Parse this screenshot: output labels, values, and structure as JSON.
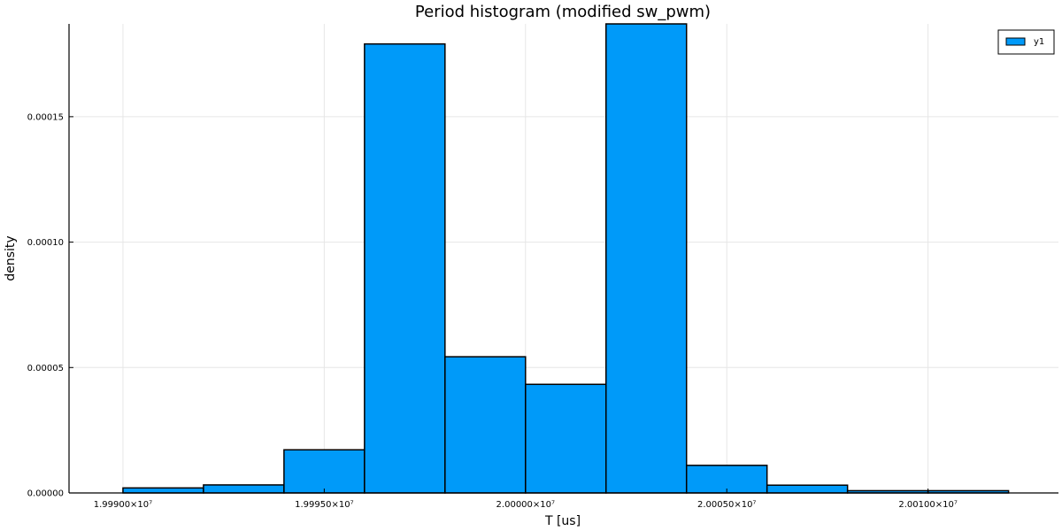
{
  "chart_data": {
    "type": "bar",
    "title": "Period histogram (modified sw_pwm)",
    "xlabel": "T [us]",
    "ylabel": "density",
    "xlim": [
      19988660,
      20013240
    ],
    "ylim": [
      0,
      0.000187
    ],
    "grid": true,
    "legend_position": "top-right",
    "series": [
      {
        "name": "y1",
        "color": "#009AF9",
        "bins": [
          {
            "x0": 19990000,
            "x1": 19992000,
            "value": 2e-06
          },
          {
            "x0": 19992000,
            "x1": 19994000,
            "value": 3.2e-06
          },
          {
            "x0": 19994000,
            "x1": 19996000,
            "value": 1.72e-05
          },
          {
            "x0": 19996000,
            "x1": 19998000,
            "value": 0.000179
          },
          {
            "x0": 19998000,
            "x1": 20000000,
            "value": 5.43e-05
          },
          {
            "x0": 20000000,
            "x1": 20002000,
            "value": 4.33e-05
          },
          {
            "x0": 20002000,
            "x1": 20004000,
            "value": 0.000187
          },
          {
            "x0": 20004000,
            "x1": 20006000,
            "value": 1.1e-05
          },
          {
            "x0": 20006000,
            "x1": 20008000,
            "value": 3.1e-06
          },
          {
            "x0": 20008000,
            "x1": 20010000,
            "value": 9e-07
          },
          {
            "x0": 20010000,
            "x1": 20012000,
            "value": 9e-07
          }
        ]
      }
    ],
    "x_ticks": [
      {
        "value": 19990000,
        "label": "1.99900×10⁷"
      },
      {
        "value": 19995000,
        "label": "1.99950×10⁷"
      },
      {
        "value": 20000000,
        "label": "2.00000×10⁷"
      },
      {
        "value": 20005000,
        "label": "2.00050×10⁷"
      },
      {
        "value": 20010000,
        "label": "2.00100×10⁷"
      }
    ],
    "y_ticks": [
      {
        "value": 0,
        "label": "0.00000"
      },
      {
        "value": 5e-05,
        "label": "0.00005"
      },
      {
        "value": 0.0001,
        "label": "0.00010"
      },
      {
        "value": 0.00015,
        "label": "0.00015"
      }
    ]
  }
}
